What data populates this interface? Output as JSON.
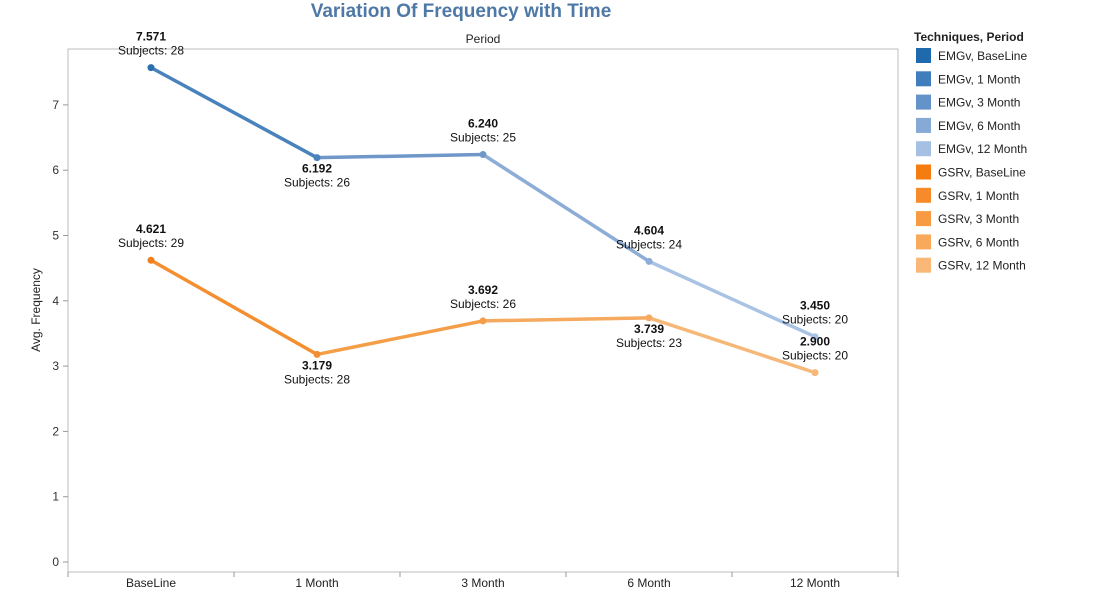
{
  "chart_data": {
    "type": "line",
    "title": "Variation Of Frequency with Time",
    "subtitle": "Period",
    "xlabel": "",
    "ylabel": "Avg. Frequency",
    "categories": [
      "BaseLine",
      "1 Month",
      "3 Month",
      "6 Month",
      "12 Month"
    ],
    "ylim": [
      0,
      7.8
    ],
    "yticks": [
      0,
      1,
      2,
      3,
      4,
      5,
      6,
      7
    ],
    "grid": false,
    "legend_position": "right",
    "series": [
      {
        "name": "EMGv",
        "values": [
          7.571,
          6.192,
          6.24,
          4.604,
          3.45
        ],
        "labels": [
          "7.571",
          "6.192",
          "6.240",
          "4.604",
          "3.450"
        ],
        "subjects": [
          "Subjects: 28",
          "Subjects: 26",
          "Subjects: 25",
          "Subjects: 24",
          "Subjects: 20"
        ],
        "label_pos": [
          "above",
          "below",
          "above",
          "above",
          "above"
        ],
        "colors": [
          "#2a6fad",
          "#4a82bb",
          "#6f98c9",
          "#8eadd6",
          "#a9c3e4"
        ]
      },
      {
        "name": "GSRv",
        "values": [
          4.621,
          3.179,
          3.692,
          3.739,
          2.9
        ],
        "labels": [
          "4.621",
          "3.179",
          "3.692",
          "3.739",
          "2.900"
        ],
        "subjects": [
          "Subjects: 29",
          "Subjects: 28",
          "Subjects: 26",
          "Subjects: 23",
          "Subjects: 20"
        ],
        "label_pos": [
          "above",
          "below",
          "above",
          "below",
          "above"
        ],
        "colors": [
          "#f0801e",
          "#f38f30",
          "#f59e48",
          "#f5aa5f",
          "#f6b878"
        ]
      }
    ],
    "legend": {
      "title": "Techniques, Period",
      "items": [
        {
          "label": "EMGv, BaseLine",
          "color": "#1f6aad"
        },
        {
          "label": "EMGv, 1 Month",
          "color": "#3f7dbd"
        },
        {
          "label": "EMGv, 3 Month",
          "color": "#6393c9"
        },
        {
          "label": "EMGv, 6 Month",
          "color": "#86a9d6"
        },
        {
          "label": "EMGv, 12 Month",
          "color": "#a6c0e4"
        },
        {
          "label": "GSRv, BaseLine",
          "color": "#f57d0f"
        },
        {
          "label": "GSRv, 1 Month",
          "color": "#f78b2a"
        },
        {
          "label": "GSRv, 3 Month",
          "color": "#f89a43"
        },
        {
          "label": "GSRv, 6 Month",
          "color": "#f8a95c"
        },
        {
          "label": "GSRv, 12 Month",
          "color": "#f9b878"
        }
      ]
    }
  }
}
